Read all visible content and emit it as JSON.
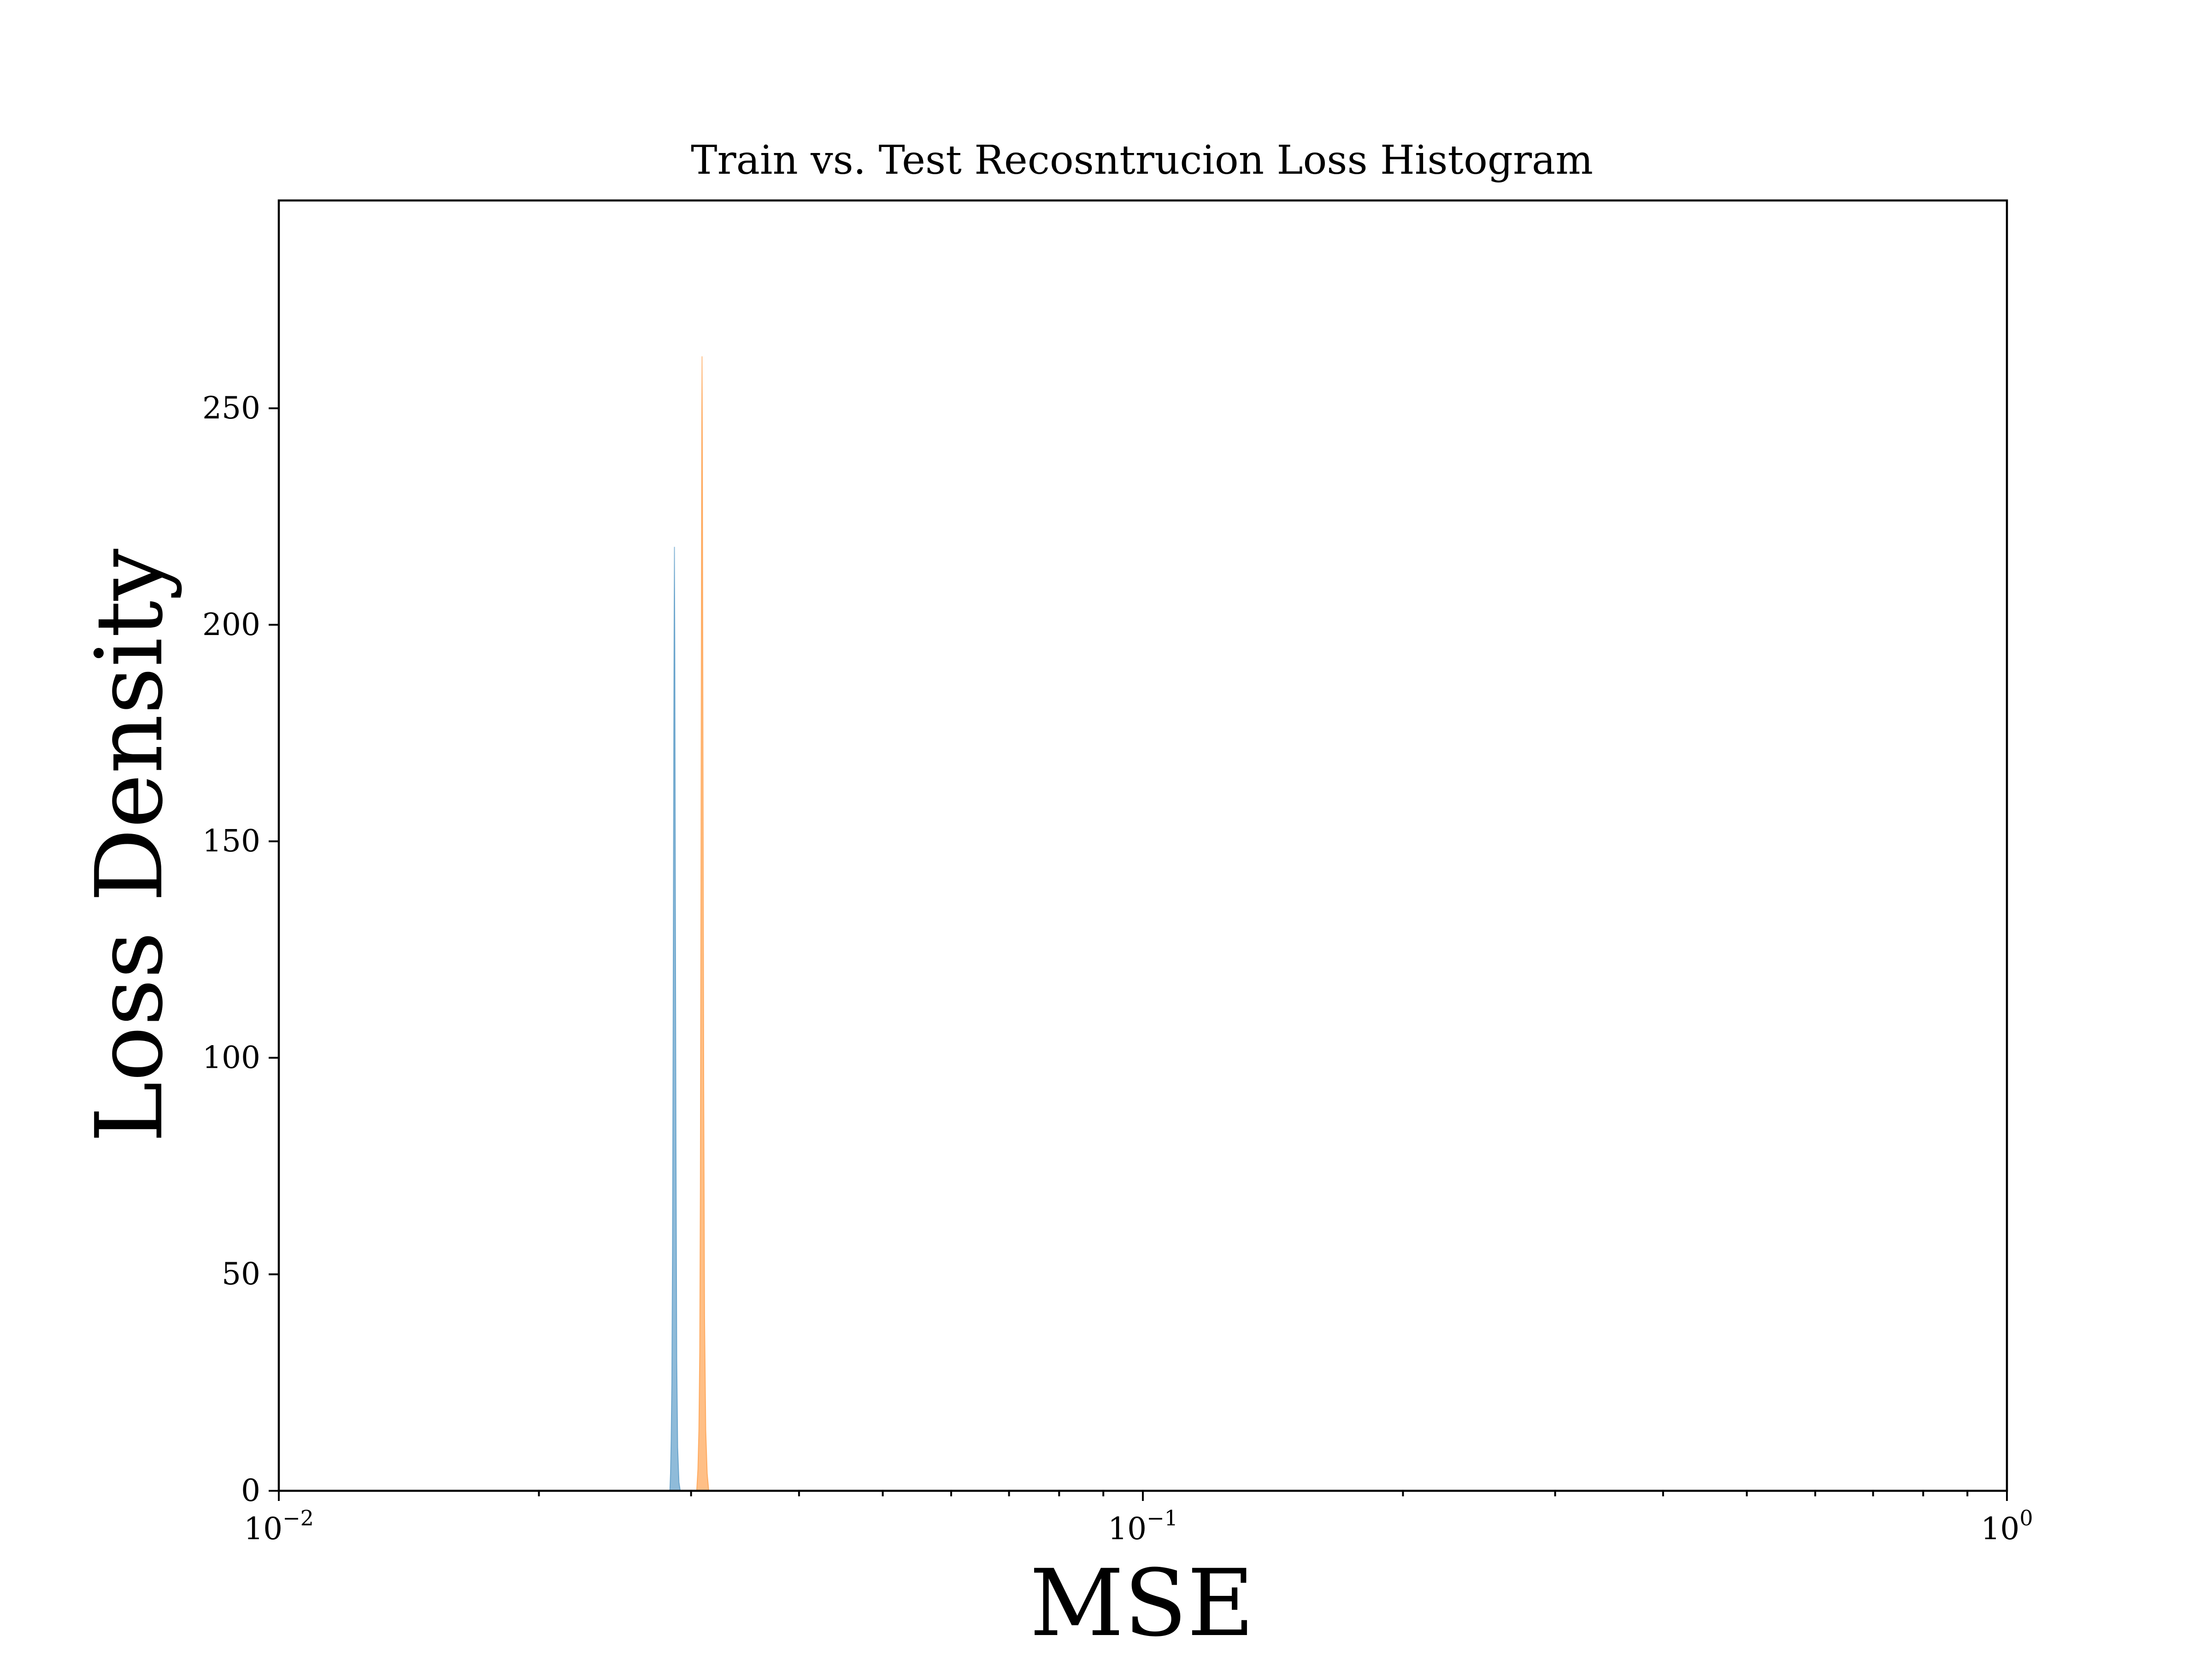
{
  "chart_data": {
    "type": "area",
    "title": "Train vs. Test Recosntrucion Loss Histogram",
    "xlabel": "MSE",
    "ylabel": "Loss Density",
    "xscale": "log",
    "xlim": [
      0.01,
      1
    ],
    "ylim": [
      0,
      298
    ],
    "grid": false,
    "legend": "none",
    "x_ticks": [
      {
        "value": 0.01,
        "base": "10",
        "exp": "−2"
      },
      {
        "value": 0.1,
        "base": "10",
        "exp": "−1"
      },
      {
        "value": 1,
        "base": "10",
        "exp": "0"
      }
    ],
    "y_ticks": [
      0,
      50,
      100,
      150,
      200,
      250
    ],
    "series": [
      {
        "color": "#1f77b4",
        "points": [
          [
            0.02835,
            0
          ],
          [
            0.0284,
            4
          ],
          [
            0.02845,
            12
          ],
          [
            0.0285,
            25
          ],
          [
            0.02855,
            55
          ],
          [
            0.0286,
            110
          ],
          [
            0.02865,
            175
          ],
          [
            0.02868,
            205
          ],
          [
            0.0287,
            218
          ],
          [
            0.02873,
            195
          ],
          [
            0.02877,
            140
          ],
          [
            0.02882,
            80
          ],
          [
            0.02888,
            30
          ],
          [
            0.02895,
            10
          ],
          [
            0.02905,
            2
          ],
          [
            0.02915,
            0
          ]
        ]
      },
      {
        "color": "#ff7f0e",
        "points": [
          [
            0.03045,
            0
          ],
          [
            0.03055,
            5
          ],
          [
            0.03063,
            14
          ],
          [
            0.0307,
            32
          ],
          [
            0.03075,
            70
          ],
          [
            0.0308,
            140
          ],
          [
            0.03084,
            210
          ],
          [
            0.03087,
            250
          ],
          [
            0.03089,
            262
          ],
          [
            0.03092,
            240
          ],
          [
            0.03097,
            170
          ],
          [
            0.03103,
            95
          ],
          [
            0.0311,
            40
          ],
          [
            0.0312,
            14
          ],
          [
            0.03132,
            4
          ],
          [
            0.03145,
            0
          ]
        ]
      }
    ]
  }
}
